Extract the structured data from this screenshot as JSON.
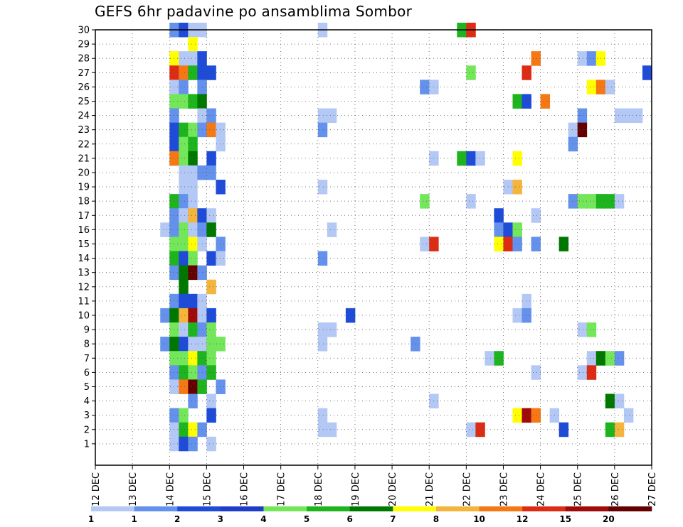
{
  "title": "GEFS 6hr padavine po ansamblima Sombor",
  "chart_data": {
    "type": "heatmap",
    "title": "GEFS 6hr padavine po ansamblima Sombor",
    "x_tick_labels": [
      "12 DEC",
      "13 DEC",
      "14 DEC",
      "15 DEC",
      "16 DEC",
      "17 DEC",
      "18 DEC",
      "19 DEC",
      "20 DEC",
      "21 DEC",
      "22 DEC",
      "23 DEC",
      "24 DEC",
      "25 DEC",
      "26 DEC",
      "27 DEC"
    ],
    "y_tick_labels": [
      "1",
      "2",
      "3",
      "4",
      "5",
      "6",
      "7",
      "8",
      "9",
      "10",
      "11",
      "12",
      "13",
      "14",
      "15",
      "16",
      "17",
      "18",
      "19",
      "20",
      "21",
      "22",
      "23",
      "24",
      "25",
      "26",
      "27",
      "28",
      "29",
      "30"
    ],
    "x_range_days": [
      0,
      15
    ],
    "y_range": [
      0,
      30
    ],
    "grid": "dotted",
    "legend": {
      "position": "bottom",
      "labels": [
        "1",
        "2",
        "3",
        "4",
        "5",
        "6",
        "7",
        "8",
        "10",
        "12",
        "15",
        "20"
      ],
      "colors": [
        "#b4c8f5",
        "#6491eb",
        "#1e4bd7",
        "#1e3cc8",
        "#73e65a",
        "#1eb41e",
        "#007800",
        "#ffff00",
        "#f5b43c",
        "#f57814",
        "#dc2d14",
        "#a00a0a",
        "#640000"
      ]
    },
    "note_cells": "each cell: [column index in 6-hour steps from 12 DEC 00Z, member row, color class 1-13]",
    "cells": [
      [
        8,
        30,
        2
      ],
      [
        9,
        30,
        3
      ],
      [
        10,
        30,
        1
      ],
      [
        11,
        30,
        1
      ],
      [
        24,
        30,
        1
      ],
      [
        39,
        30,
        6
      ],
      [
        40,
        30,
        11
      ],
      [
        10,
        29,
        8
      ],
      [
        8,
        28,
        8
      ],
      [
        9,
        28,
        1
      ],
      [
        10,
        28,
        1
      ],
      [
        11,
        28,
        3
      ],
      [
        47,
        28,
        10
      ],
      [
        52,
        28,
        1
      ],
      [
        53,
        28,
        2
      ],
      [
        54,
        28,
        8
      ],
      [
        8,
        27,
        11
      ],
      [
        9,
        27,
        10
      ],
      [
        10,
        27,
        6
      ],
      [
        11,
        27,
        3
      ],
      [
        12,
        27,
        3
      ],
      [
        40,
        27,
        5
      ],
      [
        46,
        27,
        11
      ],
      [
        59,
        27,
        3
      ],
      [
        8,
        26,
        1
      ],
      [
        9,
        26,
        2
      ],
      [
        11,
        26,
        2
      ],
      [
        35,
        26,
        2
      ],
      [
        36,
        26,
        1
      ],
      [
        53,
        26,
        8
      ],
      [
        54,
        26,
        10
      ],
      [
        55,
        26,
        1
      ],
      [
        8,
        25,
        5
      ],
      [
        9,
        25,
        5
      ],
      [
        10,
        25,
        6
      ],
      [
        11,
        25,
        7
      ],
      [
        45,
        25,
        6
      ],
      [
        46,
        25,
        3
      ],
      [
        48,
        25,
        10
      ],
      [
        8,
        24,
        2
      ],
      [
        11,
        24,
        1
      ],
      [
        12,
        24,
        2
      ],
      [
        24,
        24,
        1
      ],
      [
        25,
        24,
        1
      ],
      [
        52,
        24,
        2
      ],
      [
        56,
        24,
        1
      ],
      [
        57,
        24,
        1
      ],
      [
        58,
        24,
        1
      ],
      [
        8,
        23,
        3
      ],
      [
        9,
        23,
        6
      ],
      [
        10,
        23,
        5
      ],
      [
        11,
        23,
        2
      ],
      [
        12,
        23,
        10
      ],
      [
        13,
        23,
        1
      ],
      [
        24,
        23,
        2
      ],
      [
        51,
        23,
        1
      ],
      [
        52,
        23,
        13
      ],
      [
        8,
        22,
        3
      ],
      [
        9,
        22,
        5
      ],
      [
        10,
        22,
        6
      ],
      [
        13,
        22,
        1
      ],
      [
        51,
        22,
        2
      ],
      [
        8,
        21,
        10
      ],
      [
        9,
        21,
        5
      ],
      [
        10,
        21,
        7
      ],
      [
        12,
        21,
        3
      ],
      [
        36,
        21,
        1
      ],
      [
        39,
        21,
        6
      ],
      [
        40,
        21,
        3
      ],
      [
        41,
        21,
        1
      ],
      [
        45,
        21,
        8
      ],
      [
        9,
        20,
        1
      ],
      [
        10,
        20,
        1
      ],
      [
        11,
        20,
        2
      ],
      [
        12,
        20,
        2
      ],
      [
        9,
        19,
        1
      ],
      [
        10,
        19,
        1
      ],
      [
        13,
        19,
        3
      ],
      [
        24,
        19,
        1
      ],
      [
        44,
        19,
        1
      ],
      [
        45,
        19,
        9
      ],
      [
        8,
        18,
        6
      ],
      [
        9,
        18,
        2
      ],
      [
        10,
        18,
        1
      ],
      [
        35,
        18,
        5
      ],
      [
        40,
        18,
        1
      ],
      [
        51,
        18,
        2
      ],
      [
        52,
        18,
        5
      ],
      [
        53,
        18,
        5
      ],
      [
        54,
        18,
        6
      ],
      [
        55,
        18,
        6
      ],
      [
        56,
        18,
        1
      ],
      [
        8,
        17,
        2
      ],
      [
        9,
        17,
        1
      ],
      [
        10,
        17,
        9
      ],
      [
        11,
        17,
        3
      ],
      [
        12,
        17,
        1
      ],
      [
        43,
        17,
        3
      ],
      [
        47,
        17,
        1
      ],
      [
        7,
        16,
        1
      ],
      [
        8,
        16,
        2
      ],
      [
        9,
        16,
        5
      ],
      [
        10,
        16,
        1
      ],
      [
        11,
        16,
        2
      ],
      [
        12,
        16,
        7
      ],
      [
        25,
        16,
        1
      ],
      [
        43,
        16,
        2
      ],
      [
        44,
        16,
        3
      ],
      [
        45,
        16,
        5
      ],
      [
        8,
        15,
        5
      ],
      [
        9,
        15,
        5
      ],
      [
        10,
        15,
        8
      ],
      [
        11,
        15,
        1
      ],
      [
        13,
        15,
        2
      ],
      [
        35,
        15,
        1
      ],
      [
        36,
        15,
        11
      ],
      [
        43,
        15,
        8
      ],
      [
        44,
        15,
        11
      ],
      [
        45,
        15,
        2
      ],
      [
        47,
        15,
        2
      ],
      [
        50,
        15,
        7
      ],
      [
        8,
        14,
        6
      ],
      [
        9,
        14,
        3
      ],
      [
        10,
        14,
        5
      ],
      [
        12,
        14,
        3
      ],
      [
        13,
        14,
        1
      ],
      [
        24,
        14,
        2
      ],
      [
        8,
        13,
        2
      ],
      [
        9,
        13,
        7
      ],
      [
        10,
        13,
        13
      ],
      [
        11,
        13,
        2
      ],
      [
        9,
        12,
        7
      ],
      [
        12,
        12,
        9
      ],
      [
        8,
        11,
        2
      ],
      [
        9,
        11,
        3
      ],
      [
        10,
        11,
        3
      ],
      [
        11,
        11,
        1
      ],
      [
        46,
        11,
        1
      ],
      [
        7,
        10,
        2
      ],
      [
        8,
        10,
        7
      ],
      [
        9,
        10,
        9
      ],
      [
        10,
        10,
        12
      ],
      [
        11,
        10,
        1
      ],
      [
        12,
        10,
        3
      ],
      [
        27,
        10,
        3
      ],
      [
        45,
        10,
        1
      ],
      [
        46,
        10,
        2
      ],
      [
        8,
        9,
        5
      ],
      [
        9,
        9,
        1
      ],
      [
        10,
        9,
        6
      ],
      [
        11,
        9,
        2
      ],
      [
        12,
        9,
        5
      ],
      [
        24,
        9,
        1
      ],
      [
        25,
        9,
        1
      ],
      [
        52,
        9,
        1
      ],
      [
        53,
        9,
        5
      ],
      [
        7,
        8,
        2
      ],
      [
        8,
        8,
        7
      ],
      [
        9,
        8,
        3
      ],
      [
        10,
        8,
        1
      ],
      [
        11,
        8,
        1
      ],
      [
        12,
        8,
        5
      ],
      [
        13,
        8,
        5
      ],
      [
        24,
        8,
        1
      ],
      [
        34,
        8,
        2
      ],
      [
        8,
        7,
        5
      ],
      [
        9,
        7,
        5
      ],
      [
        10,
        7,
        8
      ],
      [
        11,
        7,
        6
      ],
      [
        12,
        7,
        5
      ],
      [
        42,
        7,
        1
      ],
      [
        43,
        7,
        6
      ],
      [
        53,
        7,
        1
      ],
      [
        54,
        7,
        7
      ],
      [
        55,
        7,
        5
      ],
      [
        56,
        7,
        2
      ],
      [
        8,
        6,
        2
      ],
      [
        9,
        6,
        6
      ],
      [
        10,
        6,
        5
      ],
      [
        11,
        6,
        2
      ],
      [
        12,
        6,
        6
      ],
      [
        47,
        6,
        1
      ],
      [
        52,
        6,
        1
      ],
      [
        53,
        6,
        11
      ],
      [
        8,
        5,
        1
      ],
      [
        9,
        5,
        10
      ],
      [
        10,
        5,
        13
      ],
      [
        11,
        5,
        6
      ],
      [
        13,
        5,
        2
      ],
      [
        10,
        4,
        2
      ],
      [
        12,
        4,
        1
      ],
      [
        36,
        4,
        1
      ],
      [
        55,
        4,
        7
      ],
      [
        56,
        4,
        1
      ],
      [
        8,
        3,
        2
      ],
      [
        9,
        3,
        5
      ],
      [
        12,
        3,
        3
      ],
      [
        24,
        3,
        1
      ],
      [
        45,
        3,
        8
      ],
      [
        46,
        3,
        12
      ],
      [
        47,
        3,
        10
      ],
      [
        49,
        3,
        1
      ],
      [
        57,
        3,
        1
      ],
      [
        8,
        2,
        1
      ],
      [
        9,
        2,
        6
      ],
      [
        10,
        2,
        8
      ],
      [
        11,
        2,
        2
      ],
      [
        24,
        2,
        1
      ],
      [
        25,
        2,
        1
      ],
      [
        40,
        2,
        1
      ],
      [
        41,
        2,
        11
      ],
      [
        50,
        2,
        3
      ],
      [
        55,
        2,
        6
      ],
      [
        56,
        2,
        9
      ],
      [
        8,
        1,
        1
      ],
      [
        9,
        1,
        3
      ],
      [
        10,
        1,
        2
      ],
      [
        12,
        1,
        1
      ]
    ]
  }
}
